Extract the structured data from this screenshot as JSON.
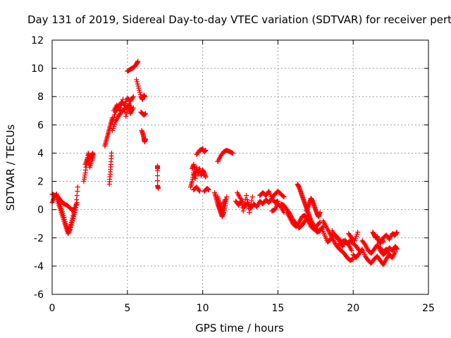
{
  "chart_data": {
    "type": "scatter",
    "title": "Day 131 of 2019, Sidereal Day-to-day VTEC variation (SDTVAR) for receiver pert",
    "xlabel": "GPS time / hours",
    "ylabel": "SDTVAR / TECUs",
    "xlim": [
      0,
      25
    ],
    "ylim": [
      -6,
      12
    ],
    "xticks": [
      0,
      5,
      10,
      15,
      20,
      25
    ],
    "yticks": [
      -6,
      -4,
      -2,
      0,
      2,
      4,
      6,
      8,
      10,
      12
    ],
    "xtick_labels": [
      "0",
      "5",
      "10",
      "15",
      "20",
      "25"
    ],
    "ytick_labels": [
      "-6",
      "-4",
      "-2",
      "0",
      "2",
      "4",
      "6",
      "8",
      "10",
      "12"
    ],
    "grid": true,
    "marker": "+",
    "color": "#ff0000",
    "series": [
      {
        "name": "SDTVAR",
        "segments": [
          {
            "x": [
              0.0,
              0.15,
              0.3,
              0.45,
              0.6,
              0.75,
              0.9,
              1.05,
              1.2,
              1.35,
              1.5
            ],
            "y": [
              0.5,
              0.9,
              1.1,
              0.6,
              0.1,
              -0.4,
              -1.0,
              -1.5,
              -1.2,
              -0.6,
              0.1
            ]
          },
          {
            "x": [
              0.3,
              0.45,
              0.6,
              0.75,
              0.9,
              1.05,
              1.2,
              1.35,
              1.5,
              1.65
            ],
            "y": [
              0.8,
              0.3,
              -0.2,
              -0.7,
              -1.2,
              -1.7,
              -1.4,
              -0.8,
              -0.2,
              0.5
            ]
          },
          {
            "x": [
              0.0,
              0.2,
              0.4,
              0.6,
              0.8,
              1.0,
              1.2,
              1.4,
              1.6,
              1.7
            ],
            "y": [
              1.1,
              1.0,
              0.9,
              0.6,
              0.4,
              0.3,
              0.1,
              -0.1,
              0.4,
              1.6
            ]
          },
          {
            "x": [
              2.1,
              2.2,
              2.3,
              2.4,
              2.5,
              2.6,
              2.7
            ],
            "y": [
              2.0,
              2.6,
              3.4,
              4.0,
              3.6,
              3.8,
              4.0
            ]
          },
          {
            "x": [
              2.2,
              2.35,
              2.5,
              2.65,
              2.75
            ],
            "y": [
              3.2,
              3.6,
              3.0,
              3.5,
              3.9
            ]
          },
          {
            "x": [
              3.5,
              3.6,
              3.7,
              3.8,
              3.9,
              4.0
            ],
            "y": [
              4.5,
              4.9,
              5.3,
              5.7,
              6.1,
              6.5
            ]
          },
          {
            "x": [
              3.8,
              3.85,
              3.9,
              3.95
            ],
            "y": [
              1.8,
              2.5,
              3.2,
              4.0
            ]
          },
          {
            "x": [
              4.0,
              4.2,
              4.4,
              4.6,
              4.8,
              5.0,
              5.2,
              5.4
            ],
            "y": [
              6.2,
              6.9,
              7.3,
              7.6,
              7.4,
              7.9,
              7.7,
              8.0
            ]
          },
          {
            "x": [
              4.0,
              4.2,
              4.4,
              4.6,
              4.8,
              5.0,
              5.2,
              5.4
            ],
            "y": [
              5.6,
              6.2,
              6.6,
              6.9,
              7.1,
              7.3,
              6.8,
              7.2
            ]
          },
          {
            "x": [
              4.1,
              4.3,
              4.5,
              4.7,
              4.9,
              5.1,
              5.3
            ],
            "y": [
              7.0,
              7.4,
              7.0,
              7.8,
              6.6,
              7.5,
              7.1
            ]
          },
          {
            "x": [
              5.0,
              5.15,
              5.3,
              5.45,
              5.6,
              5.7
            ],
            "y": [
              9.8,
              9.9,
              10.0,
              10.1,
              10.3,
              10.5
            ]
          },
          {
            "x": [
              5.6,
              5.75,
              5.9,
              6.0,
              6.1,
              6.15
            ],
            "y": [
              9.2,
              8.6,
              8.0,
              7.8,
              8.1,
              8.0
            ]
          },
          {
            "x": [
              5.9,
              6.0,
              6.1,
              6.2
            ],
            "y": [
              6.9,
              6.8,
              6.7,
              6.8
            ]
          },
          {
            "x": [
              5.95,
              6.05,
              6.1,
              6.15,
              6.2
            ],
            "y": [
              5.6,
              5.3,
              5.0,
              4.8,
              5.0
            ]
          },
          {
            "x": [
              7.0,
              7.0,
              7.0,
              7.05
            ],
            "y": [
              2.9,
              3.1,
              1.7,
              1.5
            ]
          },
          {
            "x": [
              9.2,
              9.3,
              9.4,
              9.5,
              9.6,
              9.7,
              9.8,
              9.9,
              10.0,
              10.1,
              10.2
            ],
            "y": [
              1.6,
              2.0,
              2.6,
              2.2,
              3.0,
              2.5,
              2.9,
              2.4,
              2.8,
              2.6,
              2.3
            ]
          },
          {
            "x": [
              9.3,
              9.4,
              9.5
            ],
            "y": [
              2.9,
              3.2,
              2.7
            ]
          },
          {
            "x": [
              9.6,
              9.8,
              10.0,
              10.1,
              10.2
            ],
            "y": [
              3.9,
              4.2,
              4.3,
              4.1,
              4.2
            ]
          },
          {
            "x": [
              9.4,
              9.6,
              9.8
            ],
            "y": [
              1.4,
              1.6,
              1.3
            ]
          },
          {
            "x": [
              10.1,
              10.3,
              10.4
            ],
            "y": [
              1.3,
              1.5,
              1.4
            ]
          },
          {
            "x": [
              10.8,
              10.9,
              11.0,
              11.1,
              11.2,
              11.3,
              11.4,
              11.5,
              11.6
            ],
            "y": [
              1.2,
              0.8,
              0.4,
              0.1,
              -0.2,
              -0.5,
              -0.2,
              0.3,
              0.9
            ]
          },
          {
            "x": [
              11.0,
              11.1,
              11.2,
              11.3,
              11.4,
              11.5
            ],
            "y": [
              0.9,
              0.5,
              0.2,
              -0.1,
              0.4,
              0.7
            ]
          },
          {
            "x": [
              11.0,
              11.2,
              11.4,
              11.6,
              11.8,
              12.0
            ],
            "y": [
              3.4,
              3.8,
              4.1,
              4.2,
              4.1,
              4.0
            ]
          },
          {
            "x": [
              12.2,
              12.4,
              12.6,
              12.8,
              13.0,
              13.2,
              13.4,
              13.6,
              13.8,
              14.0,
              14.2,
              14.4,
              14.6,
              14.8,
              15.0
            ],
            "y": [
              0.6,
              0.3,
              0.7,
              0.2,
              0.5,
              0.1,
              0.4,
              0.2,
              0.6,
              0.4,
              0.7,
              0.5,
              0.8,
              0.5,
              0.6
            ]
          },
          {
            "x": [
              12.3,
              12.5,
              12.7,
              12.9,
              13.1,
              13.3
            ],
            "y": [
              1.2,
              0.8,
              -0.1,
              1.0,
              -0.2,
              0.9
            ]
          },
          {
            "x": [
              13.8,
              14.0,
              14.2,
              14.4,
              14.6,
              14.8,
              15.0,
              15.2,
              15.4
            ],
            "y": [
              1.0,
              1.2,
              1.0,
              1.3,
              0.8,
              1.1,
              1.3,
              1.1,
              0.9
            ]
          },
          {
            "x": [
              14.6,
              14.8,
              15.0,
              15.2,
              15.4
            ],
            "y": [
              -0.1,
              0.0,
              0.4,
              0.2,
              -0.2
            ]
          },
          {
            "x": [
              15.2,
              15.4,
              15.6,
              15.8,
              16.0,
              16.2,
              16.4,
              16.6,
              16.8,
              17.0,
              17.2,
              17.4,
              17.6,
              17.8,
              18.0
            ],
            "y": [
              0.4,
              0.3,
              0.0,
              -0.3,
              -0.7,
              -1.0,
              -1.3,
              -1.1,
              -0.8,
              -0.5,
              -0.9,
              -1.3,
              -1.6,
              -1.5,
              -1.2
            ]
          },
          {
            "x": [
              15.6,
              15.8,
              16.0,
              16.2,
              16.4,
              16.6,
              16.8,
              17.0,
              17.2,
              17.4,
              17.6,
              17.8
            ],
            "y": [
              -0.2,
              -0.6,
              -1.0,
              -1.2,
              -0.9,
              -0.5,
              -0.4,
              -0.8,
              -1.2,
              -1.4,
              -1.1,
              -0.9
            ]
          },
          {
            "x": [
              16.3,
              16.4,
              16.5,
              16.6,
              16.7,
              16.8,
              16.9,
              17.0,
              17.1,
              17.2,
              17.3,
              17.5,
              17.7
            ],
            "y": [
              1.8,
              1.6,
              1.3,
              1.0,
              0.7,
              0.4,
              0.1,
              -0.2,
              -0.5,
              -0.8,
              -1.0,
              -1.3,
              -1.5
            ]
          },
          {
            "x": [
              16.9,
              17.0,
              17.1,
              17.2,
              17.3,
              17.4,
              17.5,
              17.6,
              17.7,
              17.8
            ],
            "y": [
              -0.1,
              0.2,
              0.5,
              0.8,
              0.6,
              0.3,
              0.0,
              -0.3,
              -0.5,
              -0.2
            ]
          },
          {
            "x": [
              17.9,
              18.1,
              18.3,
              18.5,
              18.7,
              18.9,
              19.1,
              19.3,
              19.5,
              19.7,
              19.9
            ],
            "y": [
              -1.3,
              -1.8,
              -2.3,
              -2.1,
              -1.7,
              -1.9,
              -2.4,
              -2.6,
              -2.2,
              -2.5,
              -2.9
            ]
          },
          {
            "x": [
              18.0,
              18.2,
              18.4,
              18.6,
              18.8,
              19.0,
              19.2,
              19.4,
              19.6,
              19.8,
              20.0
            ],
            "y": [
              -0.8,
              -1.2,
              -1.6,
              -2.0,
              -2.4,
              -2.7,
              -2.9,
              -3.1,
              -3.4,
              -3.6,
              -3.5
            ]
          },
          {
            "x": [
              18.6,
              18.8,
              19.0,
              19.2,
              19.4,
              19.6,
              19.8,
              20.0,
              20.2,
              20.4
            ],
            "y": [
              -1.5,
              -1.9,
              -2.0,
              -2.3,
              -2.2,
              -2.4,
              -2.2,
              -2.4,
              -2.6,
              -2.9
            ]
          },
          {
            "x": [
              19.7,
              19.9,
              20.1,
              20.3
            ],
            "y": [
              -1.7,
              -2.0,
              -2.2,
              -1.6
            ]
          },
          {
            "x": [
              20.0,
              20.2,
              20.4,
              20.6,
              20.8,
              21.0,
              21.2,
              21.4,
              21.6,
              21.8,
              22.0,
              22.2,
              22.4,
              22.6,
              22.8
            ],
            "y": [
              -3.2,
              -3.4,
              -3.1,
              -2.8,
              -3.3,
              -3.6,
              -3.8,
              -3.5,
              -3.3,
              -3.6,
              -3.9,
              -3.5,
              -3.2,
              -3.4,
              -3.0
            ]
          },
          {
            "x": [
              20.6,
              20.8,
              21.0,
              21.2,
              21.4,
              21.6,
              21.8,
              22.0,
              22.2,
              22.4,
              22.6,
              22.8,
              22.9
            ],
            "y": [
              -2.2,
              -2.5,
              -2.9,
              -3.1,
              -2.8,
              -2.5,
              -2.9,
              -3.2,
              -3.0,
              -2.7,
              -2.9,
              -2.6,
              -2.8
            ]
          },
          {
            "x": [
              21.3,
              21.4,
              21.5,
              21.6,
              21.7,
              21.8,
              21.9,
              22.0
            ],
            "y": [
              -1.6,
              -1.8,
              -2.0,
              -1.9,
              -2.2,
              -2.4,
              -2.1,
              -2.3
            ]
          },
          {
            "x": [
              22.0,
              22.2,
              22.4,
              22.6,
              22.8,
              22.9
            ],
            "y": [
              -2.0,
              -1.8,
              -2.1,
              -1.7,
              -1.8,
              -1.6
            ]
          },
          {
            "x": [
              21.8,
              22.0,
              22.2,
              22.4,
              22.6
            ],
            "y": [
              -2.7,
              -3.0,
              -2.8,
              -3.2,
              -3.4
            ]
          }
        ]
      }
    ]
  }
}
